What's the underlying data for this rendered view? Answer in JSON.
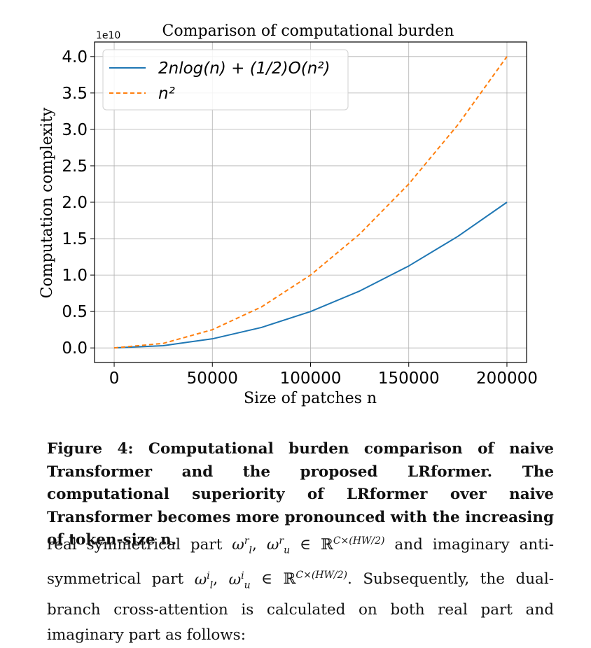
{
  "chart_data": {
    "type": "line",
    "title": "Comparison of computational burden",
    "xlabel": "Size of patches n",
    "ylabel": "Computation complexity",
    "y_scale_label": "1e10",
    "xlim": [
      -10000,
      210000
    ],
    "ylim": [
      -0.2,
      4.2
    ],
    "x_ticks": [
      0,
      50000,
      100000,
      150000,
      200000
    ],
    "x_tick_labels": [
      "0",
      "50000",
      "100000",
      "150000",
      "200000"
    ],
    "y_ticks": [
      0.0,
      0.5,
      1.0,
      1.5,
      2.0,
      2.5,
      3.0,
      3.5,
      4.0
    ],
    "y_tick_labels": [
      "0.0",
      "0.5",
      "1.0",
      "1.5",
      "2.0",
      "2.5",
      "3.0",
      "3.5",
      "4.0"
    ],
    "grid": true,
    "legend_position": "upper-left",
    "x": [
      0,
      25000,
      50000,
      75000,
      100000,
      125000,
      150000,
      175000,
      200000
    ],
    "series": [
      {
        "name": "2nlog(n) + (1/2)O(n²)",
        "color": "#1f77b4",
        "style": "solid",
        "values": [
          0,
          0.031,
          0.125,
          0.281,
          0.5,
          0.781,
          1.125,
          1.531,
          2.0
        ]
      },
      {
        "name": "n²",
        "color": "#ff7f0e",
        "style": "dashed",
        "values": [
          0,
          0.0625,
          0.25,
          0.5625,
          1.0,
          1.5625,
          2.25,
          3.0625,
          4.0
        ]
      }
    ]
  },
  "caption": {
    "text": "Figure 4: Computational burden comparison of naive Transformer and the proposed LRformer. The computational superiority of LRformer over naive Transformer becomes more pronounced with the increasing of token-size n."
  },
  "body": {
    "part1": "real symmetrical part ",
    "sym1": "ω",
    "part2": " ∈ ℝ",
    "dims": "C×(HW/2)",
    "part3": " and imaginary anti-symmetrical part ",
    "part4": ". Subsequently, the dual-branch cross-attention is calculated on both real part and imaginary part as follows:"
  }
}
